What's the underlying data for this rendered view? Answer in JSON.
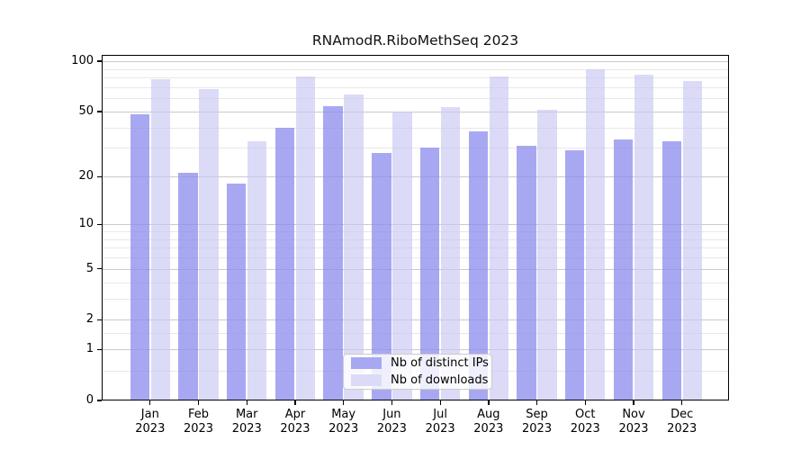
{
  "chart_data": {
    "type": "bar",
    "title": "RNAmodR.RiboMethSeq 2023",
    "scale": "log10(1+x)",
    "categories": [
      "Jan",
      "Feb",
      "Mar",
      "Apr",
      "May",
      "Jun",
      "Jul",
      "Aug",
      "Sep",
      "Oct",
      "Nov",
      "Dec"
    ],
    "year": "2023",
    "series": [
      {
        "name": "Nb of distinct IPs",
        "color": "#a8a8f2",
        "values": [
          48,
          21,
          18,
          40,
          54,
          28,
          30,
          38,
          31,
          29,
          34,
          33
        ]
      },
      {
        "name": "Nb of downloads",
        "color": "#dbdbf7",
        "values": [
          78,
          68,
          33,
          81,
          63,
          50,
          53,
          81,
          51,
          90,
          83,
          76
        ]
      }
    ],
    "yticks": [
      100,
      50,
      20,
      10,
      5,
      2,
      1,
      0
    ],
    "minor_gridlines": [
      90,
      80,
      70,
      60,
      40,
      30,
      9,
      8,
      7,
      6,
      4,
      3,
      1.5,
      0.5
    ],
    "ylim": [
      0,
      100
    ],
    "grid": true,
    "legend_position": "bottom-center"
  }
}
